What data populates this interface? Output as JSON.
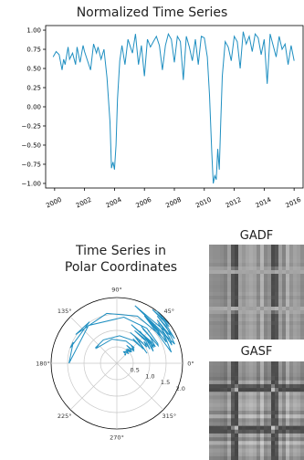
{
  "chart_data": [
    {
      "type": "line",
      "title": "Normalized Time Series",
      "xlabel": "",
      "ylabel": "",
      "xlim": [
        1999.4,
        2016.6
      ],
      "ylim": [
        -1.06,
        1.06
      ],
      "x_ticks": [
        "2000",
        "2002",
        "2004",
        "2006",
        "2008",
        "2010",
        "2012",
        "2014",
        "2016"
      ],
      "y_ticks": [
        "1.00",
        "0.75",
        "0.50",
        "0.25",
        "0.00",
        "−0.25",
        "−0.50",
        "−0.75",
        "−1.00"
      ],
      "color": "#1f8fc1",
      "x": [
        1999.9,
        2000.1,
        2000.3,
        2000.5,
        2000.6,
        2000.7,
        2000.9,
        2001.0,
        2001.2,
        2001.4,
        2001.5,
        2001.7,
        2001.9,
        2002.0,
        2002.2,
        2002.4,
        2002.6,
        2002.8,
        2002.9,
        2003.1,
        2003.3,
        2003.5,
        2003.7,
        2003.8,
        2003.9,
        2004.0,
        2004.1,
        2004.2,
        2004.35,
        2004.5,
        2004.7,
        2004.9,
        2005.0,
        2005.2,
        2005.4,
        2005.6,
        2005.8,
        2006.0,
        2006.2,
        2006.4,
        2006.6,
        2006.8,
        2007.0,
        2007.2,
        2007.4,
        2007.6,
        2007.8,
        2008.0,
        2008.2,
        2008.4,
        2008.6,
        2008.8,
        2009.0,
        2009.2,
        2009.4,
        2009.6,
        2009.8,
        2010.0,
        2010.2,
        2010.35,
        2010.5,
        2010.6,
        2010.7,
        2010.8,
        2010.9,
        2011.0,
        2011.1,
        2011.2,
        2011.4,
        2011.6,
        2011.8,
        2012.0,
        2012.2,
        2012.4,
        2012.6,
        2012.8,
        2013.0,
        2013.2,
        2013.4,
        2013.6,
        2013.8,
        2014.0,
        2014.2,
        2014.4,
        2014.6,
        2014.8,
        2015.0,
        2015.2,
        2015.4,
        2015.6,
        2015.8,
        2016.0
      ],
      "y": [
        0.65,
        0.72,
        0.68,
        0.48,
        0.62,
        0.55,
        0.78,
        0.62,
        0.7,
        0.55,
        0.78,
        0.58,
        0.8,
        0.72,
        0.6,
        0.48,
        0.82,
        0.7,
        0.78,
        0.62,
        0.75,
        0.38,
        -0.2,
        -0.8,
        -0.72,
        -0.82,
        -0.5,
        0.1,
        0.6,
        0.8,
        0.55,
        0.88,
        0.82,
        0.7,
        0.95,
        0.55,
        0.8,
        0.4,
        0.88,
        0.78,
        0.85,
        0.92,
        0.8,
        0.48,
        0.8,
        0.95,
        0.88,
        0.58,
        0.92,
        0.85,
        0.35,
        0.92,
        0.78,
        0.6,
        0.88,
        0.55,
        0.92,
        0.9,
        0.65,
        0.15,
        -0.6,
        -1.0,
        -0.9,
        -0.95,
        -0.55,
        -0.82,
        -0.2,
        0.4,
        0.85,
        0.78,
        0.6,
        0.92,
        0.85,
        0.5,
        0.98,
        0.82,
        0.92,
        0.72,
        0.95,
        0.9,
        0.68,
        0.88,
        0.3,
        0.95,
        0.8,
        0.65,
        0.92,
        0.75,
        0.82,
        0.55,
        0.8,
        0.6
      ]
    },
    {
      "type": "line",
      "title": "Time Series in Polar Coordinates",
      "angle_labels": [
        "0°",
        "45°",
        "90°",
        "135°",
        "180°",
        "225°",
        "270°",
        "315°"
      ],
      "radial_labels": [
        "0.5",
        "1.0",
        "1.5",
        "2.0"
      ],
      "rlim": [
        0,
        2.0
      ],
      "color": "#1f8fc1"
    },
    {
      "type": "heatmap",
      "title": "GADF"
    },
    {
      "type": "heatmap",
      "title": "GASF"
    }
  ],
  "titles": {
    "line": "Normalized Time Series",
    "polar_line1": "Time Series in",
    "polar_line2": "Polar Coordinates",
    "gadf": "GADF",
    "gasf": "GASF"
  }
}
